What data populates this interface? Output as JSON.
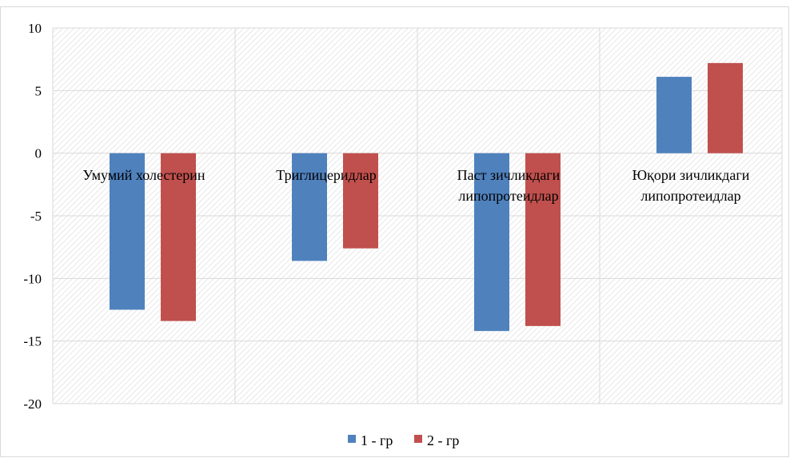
{
  "chart_data": {
    "type": "bar",
    "categories": [
      [
        "Умумий холестерин"
      ],
      [
        "Триглицеридлар"
      ],
      [
        "Паст зичликдаги",
        "липопротеидлар"
      ],
      [
        "Юқори зичликдаги",
        "липопротеидлар"
      ]
    ],
    "series": [
      {
        "name": "1 - гр",
        "color": "#4f81bd",
        "values": [
          -12.5,
          -8.6,
          -14.2,
          6.1
        ]
      },
      {
        "name": "2 - гр",
        "color": "#c0504d",
        "values": [
          -13.4,
          -7.6,
          -13.8,
          7.2
        ]
      }
    ],
    "yticks": [
      "10",
      "5",
      "0",
      "-5",
      "-10",
      "-15",
      "-20"
    ],
    "ylim": [
      -20,
      10
    ],
    "grid": true,
    "legend_position": "bottom"
  }
}
